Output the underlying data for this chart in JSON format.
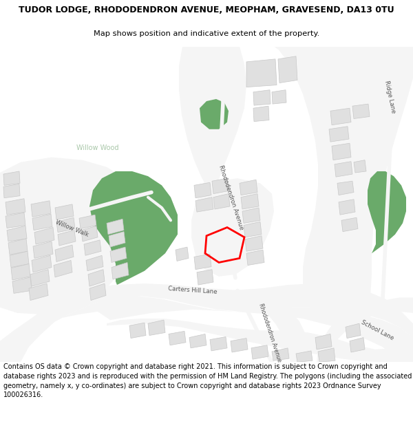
{
  "title_line1": "TUDOR LODGE, RHODODENDRON AVENUE, MEOPHAM, GRAVESEND, DA13 0TU",
  "title_line2": "Map shows position and indicative extent of the property.",
  "footer": "Contains OS data © Crown copyright and database right 2021. This information is subject to Crown copyright and database rights 2023 and is reproduced with the permission of HM Land Registry. The polygons (including the associated geometry, namely x, y co-ordinates) are subject to Crown copyright and database rights 2023 Ordnance Survey 100026316.",
  "map_bg": "#6aaa6a",
  "white": "#f5f5f5",
  "bld": "#e0e0e0",
  "bld_edge": "#c8c8c8",
  "red": "#ff0000",
  "label_color": "#555555",
  "wood_label": "#aac8aa",
  "title_fs": 9.0,
  "sub_fs": 8.2,
  "footer_fs": 7.0,
  "lbl_fs": 6.2
}
